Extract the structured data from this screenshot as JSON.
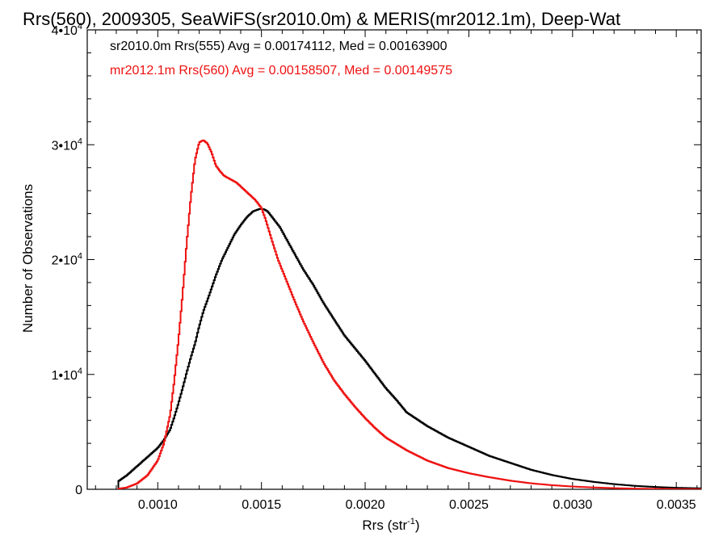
{
  "chart_data": {
    "type": "line",
    "title": "Rrs(560), 2009305, SeaWiFS(sr2010.0m) & MERIS(mr2012.1m), Deep-Wat",
    "xlabel": "Rrs (str",
    "xlabel_sup": "-1",
    "xlabel_close": ")",
    "ylabel": "Number of Observations",
    "xlim": [
      0.00066,
      0.00362
    ],
    "ylim": [
      0,
      40000
    ],
    "x_ticks": [
      {
        "value": 0.001,
        "label": "0.0010"
      },
      {
        "value": 0.0015,
        "label": "0.0015"
      },
      {
        "value": 0.002,
        "label": "0.0020"
      },
      {
        "value": 0.0025,
        "label": "0.0025"
      },
      {
        "value": 0.003,
        "label": "0.0030"
      },
      {
        "value": 0.0035,
        "label": "0.0035"
      }
    ],
    "y_ticks": [
      {
        "value": 0,
        "label": "0",
        "sup": ""
      },
      {
        "value": 10000,
        "label": "1•10",
        "sup": "4"
      },
      {
        "value": 20000,
        "label": "2•10",
        "sup": "4"
      },
      {
        "value": 30000,
        "label": "3•10",
        "sup": "4"
      },
      {
        "value": 40000,
        "label": "4•10",
        "sup": "4"
      }
    ],
    "grid": false,
    "legend_placement": "top-left",
    "series": [
      {
        "name": "sr2010.0m Rrs(555) Avg = 0.00174112, Med = 0.00163900",
        "color": "#000000",
        "x": [
          0.00081,
          0.00085,
          0.0009,
          0.00095,
          0.001,
          0.00103,
          0.00106,
          0.00108,
          0.0011,
          0.00112,
          0.00114,
          0.00116,
          0.00118,
          0.0012,
          0.00122,
          0.00125,
          0.00128,
          0.00131,
          0.00134,
          0.00137,
          0.0014,
          0.00143,
          0.00146,
          0.00149,
          0.00151,
          0.00153,
          0.00156,
          0.00159,
          0.00162,
          0.00166,
          0.0017,
          0.00175,
          0.0018,
          0.00185,
          0.0019,
          0.00195,
          0.002,
          0.00205,
          0.0021,
          0.00215,
          0.0022,
          0.0023,
          0.0024,
          0.0025,
          0.0026,
          0.0027,
          0.0028,
          0.0029,
          0.003,
          0.0031,
          0.0032,
          0.0033,
          0.0034,
          0.0035,
          0.00362
        ],
        "y": [
          700,
          1200,
          2000,
          2800,
          3600,
          4300,
          5200,
          6300,
          7500,
          8800,
          10200,
          11500,
          12700,
          14200,
          15500,
          17000,
          18600,
          20000,
          21100,
          22200,
          23000,
          23700,
          24200,
          24400,
          24400,
          24200,
          23500,
          22800,
          21800,
          20500,
          19200,
          17800,
          16200,
          14800,
          13400,
          12300,
          11200,
          10000,
          8800,
          7800,
          6700,
          5500,
          4500,
          3700,
          2900,
          2300,
          1700,
          1250,
          900,
          650,
          450,
          300,
          200,
          130,
          80
        ]
      },
      {
        "name": "mr2012.1m Rrs(560) Avg = 0.00158507, Med = 0.00149575",
        "color": "#ee1111",
        "x": [
          0.00081,
          0.00085,
          0.0009,
          0.00095,
          0.001,
          0.00103,
          0.00106,
          0.00108,
          0.0011,
          0.00112,
          0.00114,
          0.00116,
          0.00118,
          0.0012,
          0.00122,
          0.00124,
          0.00126,
          0.00128,
          0.0013,
          0.00132,
          0.00135,
          0.00138,
          0.00141,
          0.00144,
          0.00147,
          0.0015,
          0.00152,
          0.00155,
          0.00158,
          0.00162,
          0.00166,
          0.0017,
          0.00175,
          0.0018,
          0.00185,
          0.0019,
          0.00195,
          0.002,
          0.00205,
          0.0021,
          0.0022,
          0.0023,
          0.0024,
          0.0025,
          0.0026,
          0.0027,
          0.0028,
          0.0029,
          0.003,
          0.0031,
          0.0032,
          0.0033,
          0.0034,
          0.0035,
          0.00362
        ],
        "y": [
          50,
          150,
          500,
          1200,
          2500,
          4000,
          6500,
          9500,
          13000,
          17000,
          21500,
          25500,
          28700,
          30200,
          30400,
          30100,
          29300,
          28200,
          27700,
          27300,
          27000,
          26700,
          26200,
          25700,
          25200,
          24500,
          23500,
          21700,
          20000,
          18200,
          16400,
          14700,
          12800,
          11000,
          9500,
          8300,
          7200,
          6200,
          5300,
          4500,
          3400,
          2500,
          1850,
          1400,
          1050,
          750,
          520,
          360,
          240,
          160,
          100,
          60,
          40,
          20,
          10
        ]
      }
    ]
  }
}
